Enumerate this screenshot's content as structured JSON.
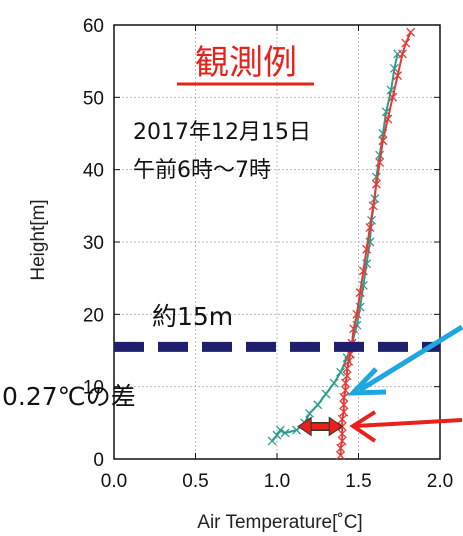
{
  "chart_data": {
    "type": "line",
    "title": "観測例",
    "subtitle_lines": [
      "2017年12月15日",
      "午前6時～7時"
    ],
    "xlabel": "Air Temperature[˚C]",
    "ylabel": "Height[m]",
    "xlim": [
      0.0,
      2.0
    ],
    "ylim": [
      0,
      60
    ],
    "xticks": [
      "0.0",
      "0.5",
      "1.0",
      "1.5",
      "2.0"
    ],
    "yticks": [
      "0",
      "10",
      "20",
      "30",
      "40",
      "50",
      "60"
    ],
    "grid": true,
    "legend": "none",
    "series": [
      {
        "color": "#2a9d8f",
        "marker": "x",
        "points": [
          [
            0.97,
            2.5
          ],
          [
            1.0,
            3.3
          ],
          [
            1.02,
            4.0
          ],
          [
            1.05,
            3.6
          ],
          [
            1.12,
            4.0
          ],
          [
            1.17,
            5.0
          ],
          [
            1.2,
            6.3
          ],
          [
            1.25,
            7.5
          ],
          [
            1.3,
            9.0
          ],
          [
            1.35,
            10.5
          ],
          [
            1.39,
            12.0
          ],
          [
            1.43,
            14.0
          ],
          [
            1.46,
            16.0
          ],
          [
            1.49,
            18.5
          ],
          [
            1.51,
            21.0
          ],
          [
            1.53,
            24.0
          ],
          [
            1.55,
            27.0
          ],
          [
            1.57,
            30.0
          ],
          [
            1.58,
            33.0
          ],
          [
            1.6,
            36.0
          ],
          [
            1.61,
            39.0
          ],
          [
            1.63,
            42.0
          ],
          [
            1.65,
            45.0
          ],
          [
            1.67,
            48.0
          ],
          [
            1.7,
            51.0
          ],
          [
            1.72,
            54.0
          ],
          [
            1.74,
            56.0
          ]
        ]
      },
      {
        "color": "#e53935",
        "marker": "x",
        "points": [
          [
            1.39,
            0.5
          ],
          [
            1.39,
            1.5
          ],
          [
            1.4,
            2.5
          ],
          [
            1.4,
            3.5
          ],
          [
            1.4,
            4.5
          ],
          [
            1.4,
            5.5
          ],
          [
            1.41,
            6.5
          ],
          [
            1.41,
            7.5
          ],
          [
            1.41,
            8.5
          ],
          [
            1.42,
            9.5
          ],
          [
            1.42,
            10.5
          ],
          [
            1.43,
            11.5
          ],
          [
            1.43,
            12.5
          ],
          [
            1.44,
            13.5
          ],
          [
            1.45,
            14.5
          ],
          [
            1.46,
            16.0
          ],
          [
            1.47,
            18.0
          ],
          [
            1.49,
            20.0
          ],
          [
            1.51,
            23.0
          ],
          [
            1.53,
            26.0
          ],
          [
            1.55,
            29.0
          ],
          [
            1.57,
            32.0
          ],
          [
            1.59,
            35.0
          ],
          [
            1.61,
            38.0
          ],
          [
            1.63,
            41.0
          ],
          [
            1.65,
            44.0
          ],
          [
            1.68,
            47.0
          ],
          [
            1.71,
            50.0
          ],
          [
            1.74,
            53.0
          ],
          [
            1.77,
            56.0
          ],
          [
            1.79,
            57.5
          ],
          [
            1.82,
            59.0
          ]
        ]
      }
    ],
    "annotations": {
      "height_label": "約15m",
      "height_line_y": 15.5,
      "diff_label": "0.27℃の差",
      "diff_y": 4.5,
      "diff_x_from": 1.13,
      "diff_x_to": 1.4,
      "dashed_line_color": "#1f1f6e",
      "label_color": "#e8211b",
      "cyan_arrow_color": "#1fa6e0",
      "red_arrow_color": "#e8211b"
    }
  }
}
